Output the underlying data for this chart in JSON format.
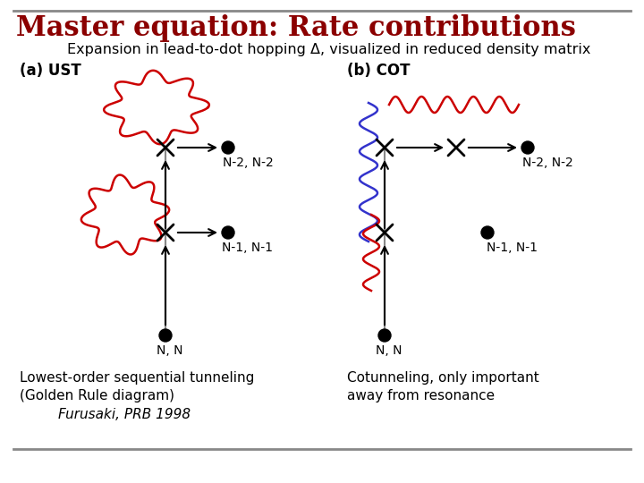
{
  "title": "Master equation: Rate contributions",
  "subtitle": "Expansion in lead-to-dot hopping Δ, visualized in reduced density matrix",
  "title_color": "#8B0000",
  "title_fontsize": 22,
  "subtitle_fontsize": 11.5,
  "bg_color": "#FFFFFF",
  "label_a": "(a) UST",
  "label_b": "(b) COT",
  "caption_a1": "Lowest-order sequential tunneling",
  "caption_a2": "(Golden Rule diagram)",
  "caption_a3": "Furusaki, PRB 1998",
  "caption_b1": "Cotunneling, only important",
  "caption_b2": "away from resonance",
  "red": "#CC0000",
  "blue": "#3333CC",
  "black": "#000000",
  "gray": "#888888"
}
